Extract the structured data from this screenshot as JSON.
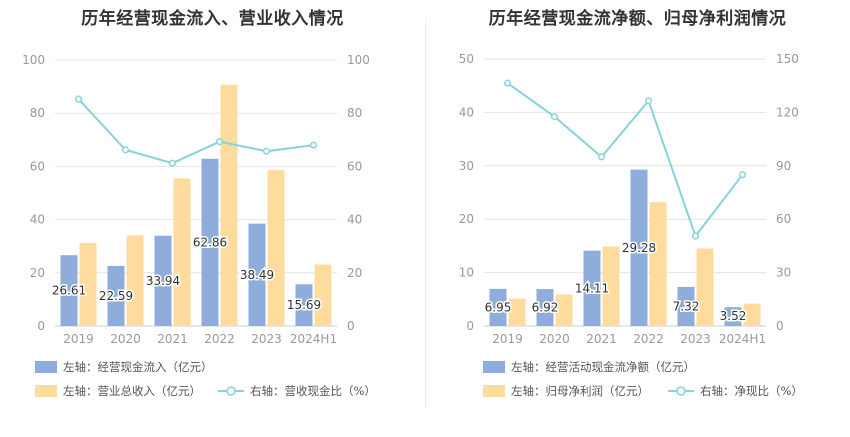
{
  "colors": {
    "bar_primary": "#8fadda",
    "bar_secondary": "#ffdc9e",
    "line": "#86d3d9",
    "grid": "#e4e4e4",
    "axis_text": "#999999",
    "label_text": "#333333"
  },
  "chart_data": [
    {
      "type": "bar",
      "title": "历年经营现金流入、营业收入情况",
      "categories": [
        "2019",
        "2020",
        "2021",
        "2022",
        "2023",
        "2024H1"
      ],
      "y_left": {
        "ticks": [
          "0",
          "20",
          "40",
          "60",
          "80",
          "100"
        ],
        "lim": [
          0,
          100
        ]
      },
      "y_right": {
        "ticks": [
          "0",
          "20",
          "40",
          "60",
          "80",
          "100"
        ],
        "lim": [
          0,
          100
        ]
      },
      "series": [
        {
          "name": "左轴：经营现金流入（亿元）",
          "type": "bar",
          "axis": "left",
          "values": [
            26.61,
            22.59,
            33.94,
            62.86,
            38.49,
            15.69
          ],
          "labels": [
            "26.61",
            "22.59",
            "33.94",
            "62.86",
            "38.49",
            "15.69"
          ]
        },
        {
          "name": "左轴：营业总收入（亿元）",
          "type": "bar",
          "axis": "left",
          "values": [
            31.2,
            34.1,
            55.5,
            90.7,
            58.6,
            23.1
          ]
        },
        {
          "name": "右轴：营收现金比（%）",
          "type": "line",
          "axis": "right",
          "values": [
            85.3,
            66.2,
            61.2,
            69.3,
            65.7,
            68.0
          ]
        }
      ],
      "legend_position": "bottom-left",
      "grid": true
    },
    {
      "type": "bar",
      "title": "历年经营现金流净额、归母净利润情况",
      "categories": [
        "2019",
        "2020",
        "2021",
        "2022",
        "2023",
        "2024H1"
      ],
      "y_left": {
        "ticks": [
          "0",
          "10",
          "20",
          "30",
          "40",
          "50"
        ],
        "lim": [
          0,
          50
        ]
      },
      "y_right": {
        "ticks": [
          "0",
          "30",
          "60",
          "90",
          "120",
          "150"
        ],
        "lim": [
          0,
          150
        ]
      },
      "series": [
        {
          "name": "左轴：经营活动现金流净额（亿元）",
          "type": "bar",
          "axis": "left",
          "values": [
            6.95,
            6.92,
            14.11,
            29.28,
            7.32,
            3.52
          ],
          "labels": [
            "6.95",
            "6.92",
            "14.11",
            "29.28",
            "7.32",
            "3.52"
          ]
        },
        {
          "name": "左轴：归母净利润（亿元）",
          "type": "bar",
          "axis": "left",
          "values": [
            5.1,
            5.9,
            14.9,
            23.2,
            14.5,
            4.2
          ]
        },
        {
          "name": "右轴：净现比（%）",
          "type": "line",
          "axis": "right",
          "values": [
            136.5,
            117.6,
            95.0,
            126.5,
            50.5,
            85.0
          ]
        }
      ],
      "legend_position": "bottom-left",
      "grid": true
    }
  ]
}
